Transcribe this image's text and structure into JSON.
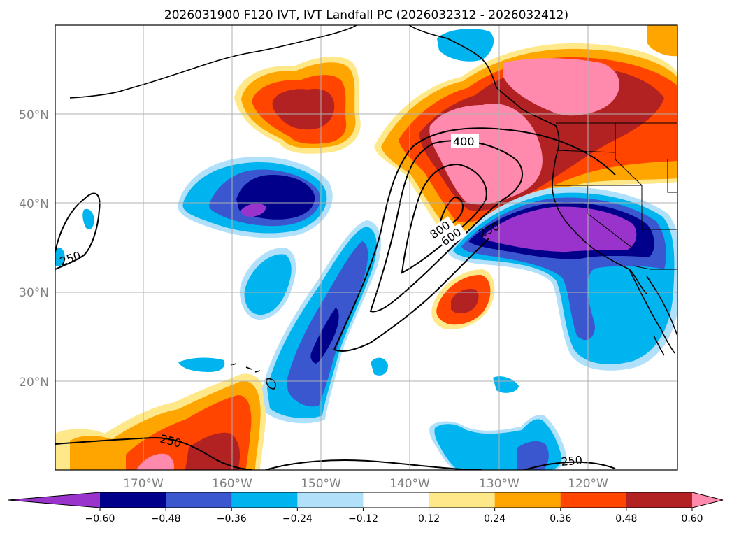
{
  "title": "2026031900 F120 IVT, IVT Landfall PC (2026032312 - 2026032412)",
  "map": {
    "lat_labels": [
      "50°N",
      "40°N",
      "30°N",
      "20°N"
    ],
    "lon_labels": [
      "170°W",
      "160°W",
      "150°W",
      "140°W",
      "130°W",
      "120°W"
    ],
    "contour_labels": [
      "400",
      "800",
      "600",
      "250",
      "250",
      "250",
      "250"
    ]
  },
  "colorbar": {
    "colors": [
      "#9933cc",
      "#00008b",
      "#3a57d0",
      "#00b4f0",
      "#b0e0fa",
      "#ffffff",
      "#ffe88a",
      "#ffa500",
      "#ff4500",
      "#b22222",
      "#ff8aae"
    ],
    "tick_labels": [
      "−0.60",
      "−0.48",
      "−0.36",
      "−0.24",
      "−0.12",
      "0.12",
      "0.24",
      "0.36",
      "0.48",
      "0.60"
    ]
  }
}
